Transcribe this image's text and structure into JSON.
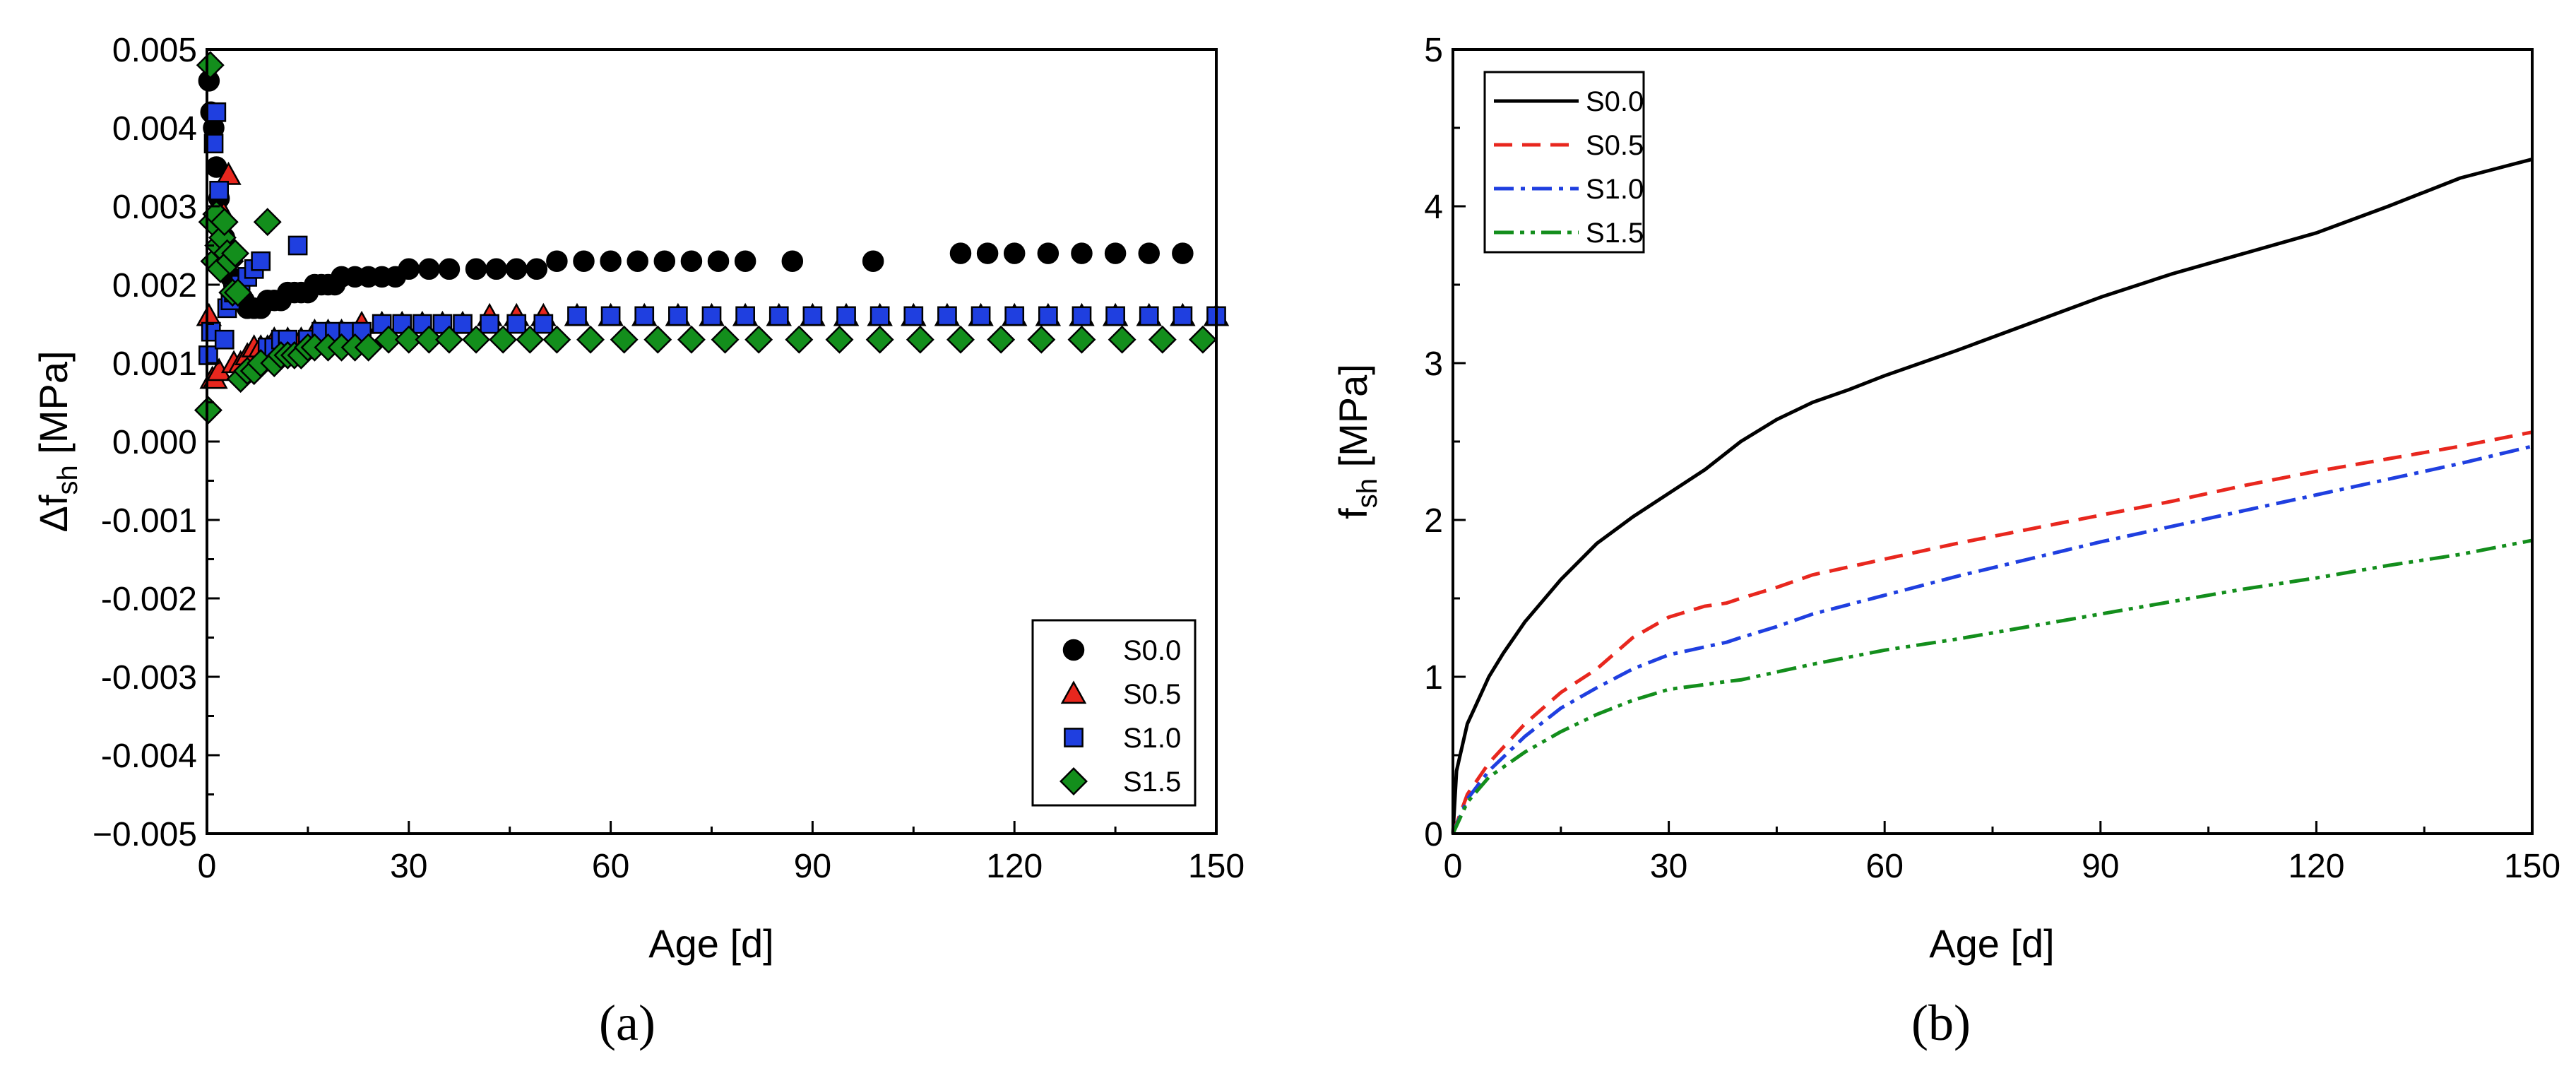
{
  "chart_data": [
    {
      "panel": "(a)",
      "type": "scatter",
      "xlabel": "Age [d]",
      "ylabel_main": "Δf",
      "ylabel_sub": "sh",
      "ylabel_unit": "[MPa]",
      "xlim": [
        0,
        150
      ],
      "ylim": [
        -0.005,
        0.005
      ],
      "xticks": [
        0,
        30,
        60,
        90,
        120,
        150
      ],
      "yticks": [
        -0.005,
        -0.004,
        -0.003,
        -0.002,
        -0.001,
        0.0,
        0.001,
        0.002,
        0.003,
        0.004,
        0.005
      ],
      "ytick_labels": [
        "−0.005",
        "-0.004",
        "-0.003",
        "-0.002",
        "-0.001",
        "0.000",
        "0.001",
        "0.002",
        "0.003",
        "0.004",
        "0.005"
      ],
      "legend_position": "bottom-right",
      "series": [
        {
          "name": "S0.0",
          "marker": "circle",
          "color": "#000000",
          "x": [
            0.3,
            0.6,
            1,
            1.4,
            1.8,
            2.2,
            2.6,
            3,
            3.5,
            4,
            4.5,
            5,
            5.5,
            6,
            7,
            8,
            9,
            10,
            11,
            12,
            13,
            14,
            15,
            16,
            17,
            18,
            19,
            20,
            22,
            24,
            26,
            28,
            30,
            33,
            36,
            40,
            43,
            46,
            49,
            52,
            56,
            60,
            64,
            68,
            72,
            76,
            80,
            87,
            99,
            112,
            116,
            120,
            125,
            130,
            135,
            140,
            145
          ],
          "y": [
            0.0046,
            0.0042,
            0.004,
            0.0035,
            0.0031,
            0.0028,
            0.0026,
            0.0023,
            0.0021,
            0.002,
            0.0019,
            0.0018,
            0.0018,
            0.0017,
            0.0017,
            0.0017,
            0.0018,
            0.0018,
            0.0018,
            0.0019,
            0.0019,
            0.0019,
            0.0019,
            0.002,
            0.002,
            0.002,
            0.002,
            0.0021,
            0.0021,
            0.0021,
            0.0021,
            0.0021,
            0.0022,
            0.0022,
            0.0022,
            0.0022,
            0.0022,
            0.0022,
            0.0022,
            0.0023,
            0.0023,
            0.0023,
            0.0023,
            0.0023,
            0.0023,
            0.0023,
            0.0023,
            0.0023,
            0.0023,
            0.0024,
            0.0024,
            0.0024,
            0.0024,
            0.0024,
            0.0024,
            0.0024,
            0.0024
          ]
        },
        {
          "name": "S0.5",
          "marker": "triangle",
          "color": "#e8271e",
          "x": [
            0.3,
            0.8,
            1.2,
            1.8,
            2.5,
            3.2,
            4,
            5,
            6,
            7,
            8,
            9,
            10,
            12,
            14,
            16,
            18,
            20,
            23,
            26,
            29,
            32,
            35,
            38,
            42,
            46,
            50,
            55,
            60,
            65,
            70,
            75,
            80,
            85,
            90,
            95,
            100,
            105,
            110,
            115,
            120,
            125,
            130,
            135,
            140,
            145,
            150
          ],
          "y": [
            0.0016,
            0.0008,
            0.0008,
            0.0009,
            0.0029,
            0.0034,
            0.001,
            0.001,
            0.0011,
            0.0012,
            0.0012,
            0.0012,
            0.0013,
            0.0013,
            0.0013,
            0.0014,
            0.0014,
            0.0014,
            0.0015,
            0.0015,
            0.0015,
            0.0015,
            0.0015,
            0.0015,
            0.0016,
            0.0016,
            0.0016,
            0.0016,
            0.0016,
            0.0016,
            0.0016,
            0.0016,
            0.0016,
            0.0016,
            0.0016,
            0.0016,
            0.0016,
            0.0016,
            0.0016,
            0.0016,
            0.0016,
            0.0016,
            0.0016,
            0.0016,
            0.0016,
            0.0016,
            0.0016
          ]
        },
        {
          "name": "S1.0",
          "marker": "square",
          "color": "#1f3fe0",
          "x": [
            0.2,
            0.6,
            1,
            1.4,
            1.8,
            2.2,
            2.6,
            3,
            3.5,
            4,
            5,
            6,
            7,
            8,
            9,
            10,
            11,
            12,
            13.5,
            15,
            17,
            19,
            21,
            23,
            26,
            29,
            32,
            35,
            38,
            42,
            46,
            50,
            55,
            60,
            65,
            70,
            75,
            80,
            85,
            90,
            95,
            100,
            105,
            110,
            115,
            120,
            125,
            130,
            135,
            140,
            145,
            150
          ],
          "y": [
            0.0011,
            0.0014,
            0.0038,
            0.0042,
            0.0032,
            0.0024,
            0.0013,
            0.0017,
            0.0018,
            0.0019,
            0.002,
            0.0021,
            0.0022,
            0.0023,
            0.0012,
            0.0012,
            0.0013,
            0.0013,
            0.0025,
            0.0013,
            0.0014,
            0.0014,
            0.0014,
            0.0014,
            0.0015,
            0.0015,
            0.0015,
            0.0015,
            0.0015,
            0.0015,
            0.0015,
            0.0015,
            0.0016,
            0.0016,
            0.0016,
            0.0016,
            0.0016,
            0.0016,
            0.0016,
            0.0016,
            0.0016,
            0.0016,
            0.0016,
            0.0016,
            0.0016,
            0.0016,
            0.0016,
            0.0016,
            0.0016,
            0.0016,
            0.0016,
            0.0016
          ]
        },
        {
          "name": "S1.5",
          "marker": "diamond",
          "color": "#138e1c",
          "x": [
            0.2,
            0.5,
            0.8,
            1.1,
            1.4,
            1.7,
            2,
            2.3,
            2.6,
            3,
            3.4,
            3.8,
            4.2,
            4.6,
            5,
            6,
            7,
            8,
            9,
            10,
            11,
            12,
            13,
            14,
            15,
            16,
            18,
            20,
            22,
            24,
            27,
            30,
            33,
            36,
            40,
            44,
            48,
            52,
            57,
            62,
            67,
            72,
            77,
            82,
            88,
            94,
            100,
            106,
            112,
            118,
            124,
            130,
            136,
            142,
            148
          ],
          "y": [
            0.0004,
            0.0048,
            0.0028,
            0.0023,
            0.0029,
            0.0025,
            0.0022,
            0.0026,
            0.0028,
            0.0024,
            0.0023,
            0.0019,
            0.0024,
            0.0019,
            0.0008,
            0.0009,
            0.0009,
            0.001,
            0.0028,
            0.001,
            0.0011,
            0.0011,
            0.0011,
            0.0011,
            0.0012,
            0.0012,
            0.0012,
            0.0012,
            0.0012,
            0.0012,
            0.0013,
            0.0013,
            0.0013,
            0.0013,
            0.0013,
            0.0013,
            0.0013,
            0.0013,
            0.0013,
            0.0013,
            0.0013,
            0.0013,
            0.0013,
            0.0013,
            0.0013,
            0.0013,
            0.0013,
            0.0013,
            0.0013,
            0.0013,
            0.0013,
            0.0013,
            0.0013,
            0.0013,
            0.0013
          ]
        }
      ]
    },
    {
      "panel": "(b)",
      "type": "line",
      "xlabel": "Age [d]",
      "ylabel_main": "f",
      "ylabel_sub": "sh",
      "ylabel_unit": "[MPa]",
      "xlim": [
        0,
        150
      ],
      "ylim": [
        0,
        5
      ],
      "xticks": [
        0,
        30,
        60,
        90,
        120,
        150
      ],
      "yticks": [
        0,
        1,
        2,
        3,
        4,
        5
      ],
      "ytick_labels": [
        "0",
        "1",
        "2",
        "3",
        "4",
        "5"
      ],
      "legend_position": "top-left",
      "series": [
        {
          "name": "S0.0",
          "style": "solid",
          "color": "#000000",
          "x": [
            0,
            0.5,
            1,
            2,
            3,
            5,
            7,
            10,
            15,
            20,
            25,
            30,
            35,
            40,
            45,
            50,
            55,
            60,
            70,
            80,
            90,
            100,
            110,
            120,
            130,
            140,
            150
          ],
          "y": [
            0,
            0.4,
            0.5,
            0.7,
            0.8,
            1,
            1.15,
            1.35,
            1.62,
            1.85,
            2.02,
            2.17,
            2.32,
            2.5,
            2.64,
            2.75,
            2.83,
            2.92,
            3.08,
            3.25,
            3.42,
            3.57,
            3.7,
            3.83,
            4.0,
            4.18,
            4.3
          ]
        },
        {
          "name": "S0.5",
          "style": "dashed",
          "color": "#e8271e",
          "x": [
            0,
            2,
            5,
            10,
            15,
            20,
            25,
            30,
            35,
            38,
            40,
            45,
            50,
            60,
            70,
            80,
            90,
            100,
            110,
            120,
            130,
            140,
            150
          ],
          "y": [
            0,
            0.25,
            0.45,
            0.7,
            0.9,
            1.05,
            1.25,
            1.38,
            1.45,
            1.47,
            1.5,
            1.57,
            1.65,
            1.75,
            1.85,
            1.94,
            2.03,
            2.12,
            2.22,
            2.31,
            2.39,
            2.47,
            2.56
          ]
        },
        {
          "name": "S1.0",
          "style": "dash-dot",
          "color": "#1f3fe0",
          "x": [
            0,
            2,
            5,
            10,
            15,
            20,
            25,
            30,
            35,
            38,
            40,
            45,
            50,
            60,
            70,
            80,
            90,
            100,
            110,
            120,
            130,
            140,
            150
          ],
          "y": [
            0,
            0.22,
            0.4,
            0.62,
            0.8,
            0.93,
            1.05,
            1.14,
            1.19,
            1.22,
            1.25,
            1.32,
            1.4,
            1.52,
            1.64,
            1.75,
            1.86,
            1.96,
            2.06,
            2.16,
            2.26,
            2.36,
            2.47
          ]
        },
        {
          "name": "S1.5",
          "style": "dash-dot-dot",
          "color": "#138e1c",
          "x": [
            0,
            2,
            5,
            10,
            15,
            20,
            25,
            30,
            35,
            38,
            40,
            45,
            50,
            60,
            70,
            80,
            90,
            100,
            110,
            120,
            130,
            140,
            150
          ],
          "y": [
            0,
            0.2,
            0.36,
            0.52,
            0.65,
            0.76,
            0.85,
            0.92,
            0.95,
            0.97,
            0.98,
            1.03,
            1.08,
            1.17,
            1.24,
            1.32,
            1.4,
            1.48,
            1.56,
            1.63,
            1.71,
            1.78,
            1.87
          ]
        }
      ]
    }
  ]
}
